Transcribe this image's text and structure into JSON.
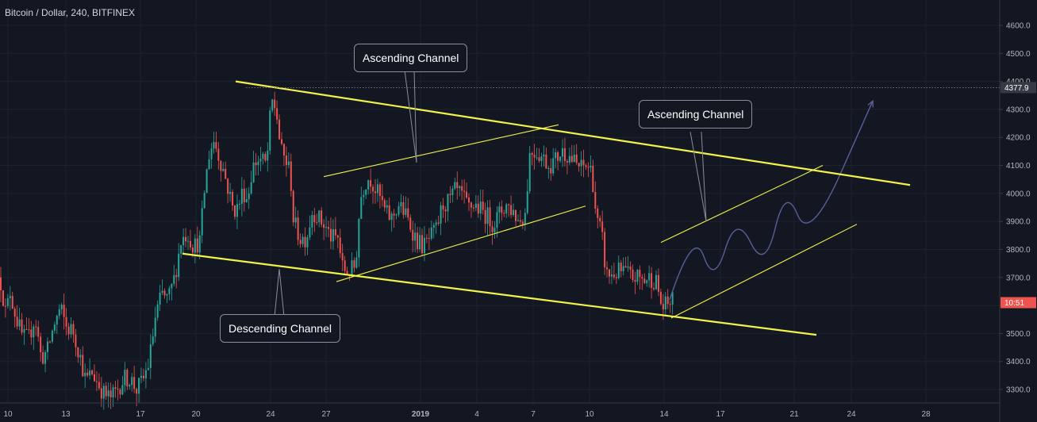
{
  "chart_data": {
    "type": "candlestick",
    "title": "Bitcoin / Dollar, 240, BITFINEX",
    "y_axis": {
      "range": [
        3240,
        4870
      ],
      "ticks": [
        3300,
        3400,
        3500,
        3600,
        3700,
        3800,
        3900,
        4000,
        4100,
        4200,
        4300,
        4400,
        4500,
        4600
      ]
    },
    "x_axis": {
      "ticks": [
        {
          "label": "10",
          "bold": false
        },
        {
          "label": "13",
          "bold": false
        },
        {
          "label": "17",
          "bold": false
        },
        {
          "label": "20",
          "bold": false
        },
        {
          "label": "24",
          "bold": false
        },
        {
          "label": "27",
          "bold": false
        },
        {
          "label": "2019",
          "bold": true
        },
        {
          "label": "4",
          "bold": false
        },
        {
          "label": "7",
          "bold": false
        },
        {
          "label": "10",
          "bold": false
        },
        {
          "label": "14",
          "bold": false
        },
        {
          "label": "17",
          "bold": false
        },
        {
          "label": "21",
          "bold": false
        },
        {
          "label": "24",
          "bold": false
        },
        {
          "label": "28",
          "bold": false
        }
      ]
    },
    "price_markers": [
      {
        "label": "4377.9",
        "value": 4377.9,
        "color": "#363a45"
      },
      {
        "label": "10:51",
        "value": 3610,
        "color": "#ef5350"
      }
    ],
    "close_path": [
      [
        0,
        3700
      ],
      [
        8,
        3560
      ],
      [
        12,
        3660
      ],
      [
        20,
        3560
      ],
      [
        28,
        3490
      ],
      [
        36,
        3480
      ],
      [
        44,
        3560
      ],
      [
        52,
        3410
      ],
      [
        60,
        3440
      ],
      [
        68,
        3530
      ],
      [
        76,
        3590
      ],
      [
        84,
        3520
      ],
      [
        92,
        3510
      ],
      [
        100,
        3430
      ],
      [
        108,
        3330
      ],
      [
        116,
        3360
      ],
      [
        124,
        3320
      ],
      [
        132,
        3280
      ],
      [
        140,
        3270
      ],
      [
        148,
        3300
      ],
      [
        156,
        3340
      ],
      [
        164,
        3340
      ],
      [
        172,
        3300
      ],
      [
        180,
        3330
      ],
      [
        188,
        3400
      ],
      [
        196,
        3560
      ],
      [
        204,
        3640
      ],
      [
        212,
        3620
      ],
      [
        220,
        3700
      ],
      [
        228,
        3830
      ],
      [
        236,
        3860
      ],
      [
        244,
        3810
      ],
      [
        252,
        3830
      ],
      [
        258,
        4020
      ],
      [
        264,
        4150
      ],
      [
        270,
        4190
      ],
      [
        276,
        4130
      ],
      [
        282,
        4080
      ],
      [
        288,
        4010
      ],
      [
        294,
        3940
      ],
      [
        300,
        3950
      ],
      [
        306,
        4010
      ],
      [
        312,
        3980
      ],
      [
        318,
        4090
      ],
      [
        324,
        4120
      ],
      [
        330,
        4120
      ],
      [
        336,
        4100
      ],
      [
        342,
        4330
      ],
      [
        348,
        4300
      ],
      [
        354,
        4150
      ],
      [
        360,
        4120
      ],
      [
        366,
        4070
      ],
      [
        370,
        3900
      ],
      [
        378,
        3840
      ],
      [
        386,
        3840
      ],
      [
        394,
        3940
      ],
      [
        402,
        3910
      ],
      [
        410,
        3880
      ],
      [
        418,
        3840
      ],
      [
        426,
        3840
      ],
      [
        432,
        3730
      ],
      [
        440,
        3720
      ],
      [
        448,
        3740
      ],
      [
        454,
        3980
      ],
      [
        460,
        4040
      ],
      [
        466,
        4060
      ],
      [
        472,
        4020
      ],
      [
        478,
        3990
      ],
      [
        486,
        3930
      ],
      [
        494,
        3910
      ],
      [
        502,
        3960
      ],
      [
        510,
        3930
      ],
      [
        518,
        3880
      ],
      [
        526,
        3830
      ],
      [
        534,
        3810
      ],
      [
        542,
        3840
      ],
      [
        550,
        3870
      ],
      [
        558,
        3960
      ],
      [
        566,
        3970
      ],
      [
        574,
        4010
      ],
      [
        582,
        3990
      ],
      [
        590,
        3950
      ],
      [
        598,
        3960
      ],
      [
        606,
        3940
      ],
      [
        614,
        3920
      ],
      [
        622,
        3890
      ],
      [
        630,
        3930
      ],
      [
        638,
        3960
      ],
      [
        646,
        3940
      ],
      [
        654,
        3900
      ],
      [
        662,
        3930
      ],
      [
        668,
        4150
      ],
      [
        676,
        4150
      ],
      [
        684,
        4130
      ],
      [
        692,
        4100
      ],
      [
        700,
        4120
      ],
      [
        708,
        4150
      ],
      [
        716,
        4140
      ],
      [
        724,
        4110
      ],
      [
        732,
        4090
      ],
      [
        740,
        4100
      ],
      [
        746,
        4080
      ],
      [
        752,
        3900
      ],
      [
        758,
        3860
      ],
      [
        764,
        3710
      ],
      [
        772,
        3710
      ],
      [
        780,
        3720
      ],
      [
        788,
        3720
      ],
      [
        796,
        3700
      ],
      [
        804,
        3700
      ],
      [
        812,
        3690
      ],
      [
        820,
        3700
      ],
      [
        828,
        3680
      ],
      [
        834,
        3590
      ],
      [
        840,
        3600
      ],
      [
        846,
        3620
      ],
      [
        850,
        3610
      ]
    ],
    "projection": [
      [
        844,
        3620
      ],
      [
        874,
        3880
      ],
      [
        900,
        3670
      ],
      [
        928,
        3930
      ],
      [
        964,
        3720
      ],
      [
        990,
        4030
      ],
      [
        1020,
        3820
      ],
      [
        1100,
        4330
      ]
    ],
    "trendlines": [
      {
        "color": "#f2f24a",
        "width": 2.2,
        "points": [
          [
            297,
            4400
          ],
          [
            1147,
            4030
          ]
        ]
      },
      {
        "color": "#f2f24a",
        "width": 2.2,
        "points": [
          [
            230,
            3785
          ],
          [
            1029,
            3495
          ]
        ]
      },
      {
        "color": "#f2f24a",
        "width": 1.1,
        "points": [
          [
            408,
            4060
          ],
          [
            704,
            4245
          ]
        ]
      },
      {
        "color": "#f2f24a",
        "width": 1.1,
        "points": [
          [
            424,
            3685
          ],
          [
            738,
            3955
          ]
        ]
      },
      {
        "color": "#f2f24a",
        "width": 1.1,
        "points": [
          [
            833,
            3825
          ],
          [
            1037,
            4100
          ]
        ]
      },
      {
        "color": "#f2f24a",
        "width": 1.1,
        "points": [
          [
            846,
            3555
          ],
          [
            1080,
            3890
          ]
        ]
      }
    ],
    "annotations": [
      {
        "name": "ascending-channel-callout-left",
        "label": "Ascending Channel",
        "pointer": [
          [
            510,
            4440
          ],
          [
            525,
            4110
          ],
          [
            522,
            4440
          ]
        ]
      },
      {
        "name": "ascending-channel-callout-right",
        "label": "Ascending Channel",
        "pointer": [
          [
            870,
            4220
          ],
          [
            890,
            3900
          ],
          [
            884,
            4220
          ]
        ]
      },
      {
        "name": "descending-channel-callout",
        "label": "Descending Channel",
        "pointer": [
          [
            346,
            3560
          ],
          [
            352,
            3730
          ],
          [
            358,
            3560
          ]
        ]
      }
    ],
    "colors": {
      "background": "#131722",
      "up": "#26a69a",
      "down": "#ef5350",
      "trendline": "#f2f24a",
      "projection": "#5b5f99"
    }
  }
}
